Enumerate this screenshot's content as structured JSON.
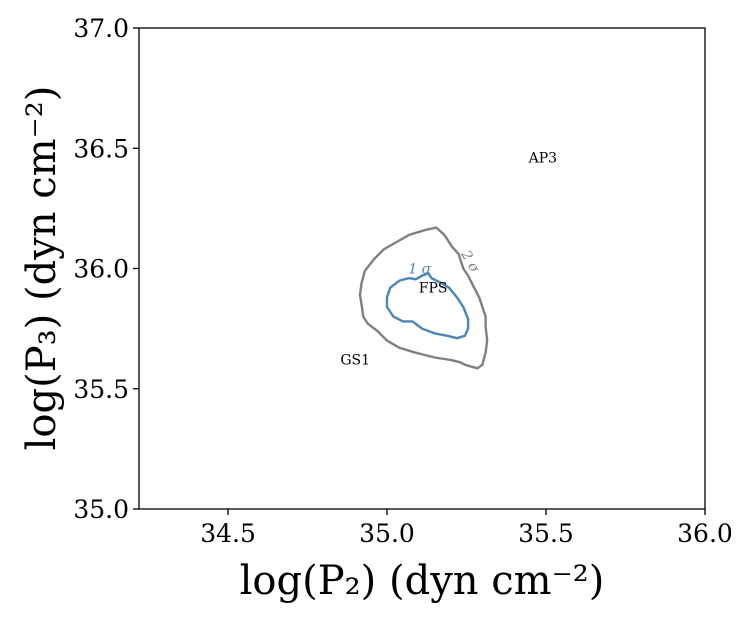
{
  "chart_data": {
    "type": "line",
    "title": "",
    "xlabel": "log(P₂) (dyn cm⁻²)",
    "ylabel": "log(P₃) (dyn cm⁻²)",
    "xlim": [
      34.22,
      36.0
    ],
    "ylim": [
      35.0,
      37.0
    ],
    "xticks": [
      {
        "value": 34.5,
        "label": "34.5"
      },
      {
        "value": 35.0,
        "label": "35.0"
      },
      {
        "value": 35.5,
        "label": "35.5"
      },
      {
        "value": 36.0,
        "label": "36.0"
      }
    ],
    "yticks": [
      {
        "value": 35.0,
        "label": "35.0"
      },
      {
        "value": 35.5,
        "label": "35.5"
      },
      {
        "value": 36.0,
        "label": "36.0"
      },
      {
        "value": 36.5,
        "label": "36.5"
      },
      {
        "value": 37.0,
        "label": "37.0"
      }
    ],
    "grid": false,
    "series": [
      {
        "name": "2 σ",
        "color": "#808080",
        "points": [
          [
            35.27,
            35.59
          ],
          [
            35.245,
            35.6
          ],
          [
            35.23,
            35.61
          ],
          [
            35.2,
            35.62
          ],
          [
            35.15,
            35.63
          ],
          [
            35.09,
            35.65
          ],
          [
            35.04,
            35.67
          ],
          [
            35.0,
            35.7
          ],
          [
            34.97,
            35.74
          ],
          [
            34.94,
            35.77
          ],
          [
            34.925,
            35.8
          ],
          [
            34.92,
            35.85
          ],
          [
            34.915,
            35.89
          ],
          [
            34.92,
            35.94
          ],
          [
            34.93,
            35.99
          ],
          [
            34.96,
            36.04
          ],
          [
            34.99,
            36.08
          ],
          [
            35.03,
            36.11
          ],
          [
            35.07,
            36.14
          ],
          [
            35.12,
            36.16
          ],
          [
            35.155,
            36.17
          ],
          [
            35.18,
            36.14
          ],
          [
            35.205,
            36.09
          ],
          [
            35.225,
            36.06
          ],
          [
            35.24,
            36.0
          ],
          [
            35.255,
            35.97
          ],
          [
            35.27,
            35.93
          ],
          [
            35.29,
            35.88
          ],
          [
            35.3,
            35.84
          ],
          [
            35.31,
            35.8
          ],
          [
            35.31,
            35.76
          ],
          [
            35.315,
            35.7
          ],
          [
            35.31,
            35.65
          ],
          [
            35.3,
            35.6
          ],
          [
            35.285,
            35.585
          ],
          [
            35.27,
            35.59
          ]
        ]
      },
      {
        "name": "1 σ",
        "color": "#4a86b8",
        "points": [
          [
            35.07,
            35.96
          ],
          [
            35.04,
            35.95
          ],
          [
            35.01,
            35.92
          ],
          [
            35.0,
            35.88
          ],
          [
            35.0,
            35.84
          ],
          [
            35.02,
            35.8
          ],
          [
            35.05,
            35.78
          ],
          [
            35.08,
            35.78
          ],
          [
            35.11,
            35.75
          ],
          [
            35.15,
            35.73
          ],
          [
            35.19,
            35.72
          ],
          [
            35.22,
            35.71
          ],
          [
            35.245,
            35.72
          ],
          [
            35.255,
            35.75
          ],
          [
            35.255,
            35.79
          ],
          [
            35.24,
            35.84
          ],
          [
            35.22,
            35.88
          ],
          [
            35.195,
            35.92
          ],
          [
            35.17,
            35.94
          ],
          [
            35.14,
            35.96
          ],
          [
            35.13,
            35.98
          ],
          [
            35.11,
            35.97
          ],
          [
            35.09,
            35.955
          ],
          [
            35.07,
            35.96
          ]
        ]
      }
    ],
    "annotations": [
      {
        "text": "AP3",
        "x": 35.49,
        "y": 36.44
      },
      {
        "text": "FPS",
        "x": 35.145,
        "y": 35.9
      },
      {
        "text": "GS1",
        "x": 34.9,
        "y": 35.6
      },
      {
        "text": "1 σ",
        "x": 35.103,
        "y": 35.98,
        "color": "#4a86b8"
      },
      {
        "text": "2 σ",
        "x": 35.25,
        "y": 36.02,
        "color": "#808080"
      }
    ]
  }
}
